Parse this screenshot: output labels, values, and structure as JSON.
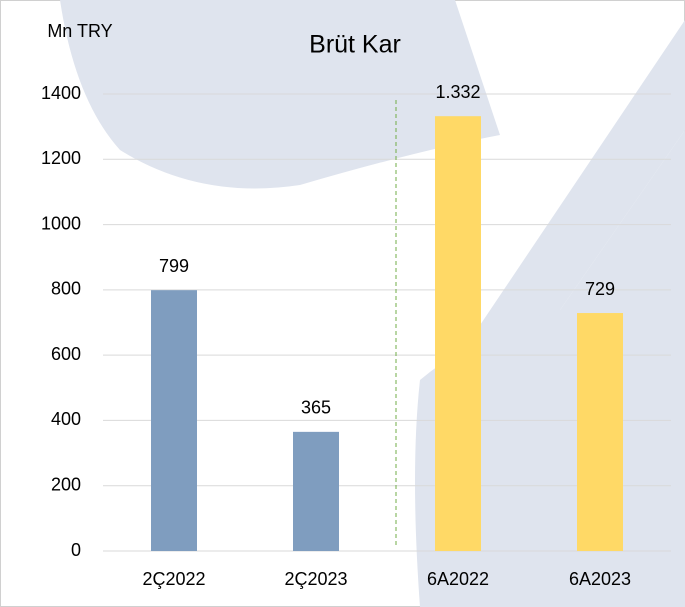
{
  "chart_data": {
    "type": "bar",
    "title": "Brüt Kar",
    "y_axis_label": "Mn TRY",
    "categories": [
      "2Ç2022",
      "2Ç2023",
      "6A2022",
      "6A2023"
    ],
    "values": [
      799,
      365,
      1332,
      729
    ],
    "value_labels": [
      "799",
      "365",
      "1.332",
      "729"
    ],
    "colors": [
      "#7f9dbf",
      "#7f9dbf",
      "#ffd966",
      "#ffd966"
    ],
    "ylim": [
      0,
      1400
    ],
    "yticks": [
      0,
      200,
      400,
      600,
      800,
      1000,
      1200,
      1400
    ],
    "grid": true
  }
}
